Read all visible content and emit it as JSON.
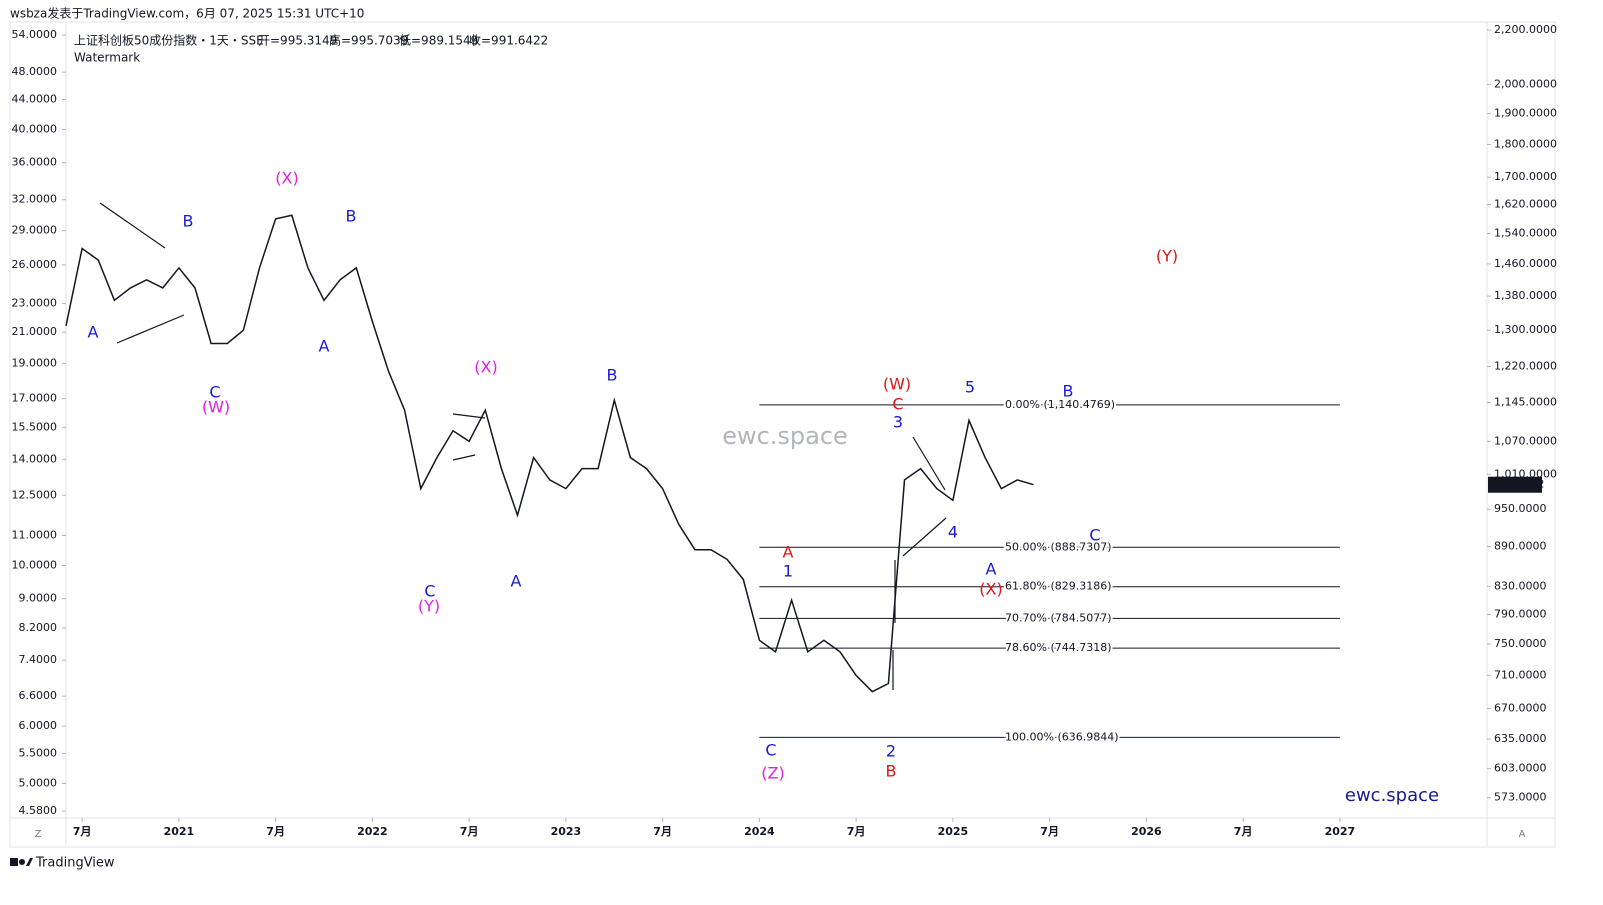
{
  "header": {
    "byline": "wsbza发表于TradingView.com，6月 07, 2025 15:31 UTC+10",
    "footer": "TradingView"
  },
  "chart_data": {
    "type": "line",
    "title": "上证科创板50成份指数・1天・SSE",
    "ohlc": [
      "开=995.3149",
      "高=995.7039",
      "低=989.1549",
      "收=991.6422"
    ],
    "subtitle": "Watermark",
    "watermark": "ewc.space",
    "brand": "ewc.space",
    "scale_buttons": [
      "Z",
      "A"
    ],
    "log_scale": true,
    "x": [
      "2020-06",
      "2020-07",
      "2020-08",
      "2020-09",
      "2020-10",
      "2020-11",
      "2020-12",
      "2021-01",
      "2021-02",
      "2021-03",
      "2021-04",
      "2021-05",
      "2021-06",
      "2021-07",
      "2021-08",
      "2021-09",
      "2021-10",
      "2021-11",
      "2021-12",
      "2022-01",
      "2022-02",
      "2022-03",
      "2022-04",
      "2022-05",
      "2022-06",
      "2022-07",
      "2022-08",
      "2022-09",
      "2022-10",
      "2022-11",
      "2022-12",
      "2023-01",
      "2023-02",
      "2023-03",
      "2023-04",
      "2023-05",
      "2023-06",
      "2023-07",
      "2023-08",
      "2023-09",
      "2023-10",
      "2023-11",
      "2023-12",
      "2024-01",
      "2024-02",
      "2024-03",
      "2024-04",
      "2024-05",
      "2024-06",
      "2024-07",
      "2024-08",
      "2024-09",
      "2024-10",
      "2024-11",
      "2024-12",
      "2025-01",
      "2025-02",
      "2025-03",
      "2025-04",
      "2025-05",
      "2025-06"
    ],
    "series": [
      {
        "color": "#131722",
        "values": [
          1310,
          1500,
          1470,
          1370,
          1400,
          1420,
          1400,
          1450,
          1400,
          1270,
          1270,
          1300,
          1450,
          1580,
          1590,
          1450,
          1370,
          1420,
          1450,
          1320,
          1210,
          1130,
          985,
          1040,
          1090,
          1070,
          1130,
          1020,
          940,
          1040,
          1000,
          985,
          1020,
          1020,
          1150,
          1040,
          1020,
          985,
          925,
          885,
          885,
          870,
          840,
          755,
          740,
          810,
          740,
          755,
          740,
          710,
          690,
          700,
          1000,
          1020,
          985,
          965,
          1110,
          1040,
          985,
          1000,
          991.6422
        ]
      }
    ],
    "xlim": [
      "2020-06",
      "2027-10"
    ],
    "xticks": [
      {
        "value": "2020-07",
        "label": "7月"
      },
      {
        "value": "2021-01",
        "label": "2021"
      },
      {
        "value": "2021-07",
        "label": "7月"
      },
      {
        "value": "2022-01",
        "label": "2022"
      },
      {
        "value": "2022-07",
        "label": "7月"
      },
      {
        "value": "2023-01",
        "label": "2023"
      },
      {
        "value": "2023-07",
        "label": "7月"
      },
      {
        "value": "2024-01",
        "label": "2024"
      },
      {
        "value": "2024-07",
        "label": "7月"
      },
      {
        "value": "2025-01",
        "label": "2025"
      },
      {
        "value": "2025-07",
        "label": "7月"
      },
      {
        "value": "2026-01",
        "label": "2026"
      },
      {
        "value": "2026-07",
        "label": "7月"
      },
      {
        "value": "2027-01",
        "label": "2027"
      }
    ],
    "ylim": [
      553,
      2231
    ],
    "yticks": [
      {
        "value": 2200,
        "label": "2,200.0000"
      },
      {
        "value": 2000,
        "label": "2,000.0000"
      },
      {
        "value": 1900,
        "label": "1,900.0000"
      },
      {
        "value": 1800,
        "label": "1,800.0000"
      },
      {
        "value": 1700,
        "label": "1,700.0000"
      },
      {
        "value": 1620,
        "label": "1,620.0000"
      },
      {
        "value": 1540,
        "label": "1,540.0000"
      },
      {
        "value": 1460,
        "label": "1,460.0000"
      },
      {
        "value": 1380,
        "label": "1,380.0000"
      },
      {
        "value": 1300,
        "label": "1,300.0000"
      },
      {
        "value": 1220,
        "label": "1,220.0000"
      },
      {
        "value": 1145,
        "label": "1,145.0000"
      },
      {
        "value": 1070,
        "label": "1,070.0000"
      },
      {
        "value": 1010,
        "label": "1,010.0000"
      },
      {
        "value": 950,
        "label": "950.0000"
      },
      {
        "value": 890,
        "label": "890.0000"
      },
      {
        "value": 830,
        "label": "830.0000"
      },
      {
        "value": 790,
        "label": "790.0000"
      },
      {
        "value": 750,
        "label": "750.0000"
      },
      {
        "value": 710,
        "label": "710.0000"
      },
      {
        "value": 670,
        "label": "670.0000"
      },
      {
        "value": 635,
        "label": "635.0000"
      },
      {
        "value": 603,
        "label": "603.0000"
      },
      {
        "value": 573,
        "label": "573.0000"
      }
    ],
    "y2lim": [
      4.48,
      56.3
    ],
    "y2ticks": [
      {
        "value": 54,
        "label": "54.0000"
      },
      {
        "value": 48,
        "label": "48.0000"
      },
      {
        "value": 44,
        "label": "44.0000"
      },
      {
        "value": 40,
        "label": "40.0000"
      },
      {
        "value": 36,
        "label": "36.0000"
      },
      {
        "value": 32,
        "label": "32.0000"
      },
      {
        "value": 29,
        "label": "29.0000"
      },
      {
        "value": 26,
        "label": "26.0000"
      },
      {
        "value": 23,
        "label": "23.0000"
      },
      {
        "value": 21,
        "label": "21.0000"
      },
      {
        "value": 19,
        "label": "19.0000"
      },
      {
        "value": 17,
        "label": "17.0000"
      },
      {
        "value": 15.5,
        "label": "15.5000"
      },
      {
        "value": 14,
        "label": "14.0000"
      },
      {
        "value": 12.5,
        "label": "12.5000"
      },
      {
        "value": 11,
        "label": "11.0000"
      },
      {
        "value": 10,
        "label": "10.0000"
      },
      {
        "value": 9,
        "label": "9.0000"
      },
      {
        "value": 8.2,
        "label": "8.2000"
      },
      {
        "value": 7.4,
        "label": "7.4000"
      },
      {
        "value": 6.6,
        "label": "6.6000"
      },
      {
        "value": 6,
        "label": "6.0000"
      },
      {
        "value": 5.5,
        "label": "5.5000"
      },
      {
        "value": 5,
        "label": "5.0000"
      },
      {
        "value": 4.58,
        "label": "4.5800"
      }
    ],
    "fib": {
      "start": "2024-01",
      "end": "2027-01",
      "levels": [
        {
          "value": 1140.4769,
          "label": "0.00% (1,140.4769)"
        },
        {
          "value": 888.7307,
          "label": "50.00% (888.7307)"
        },
        {
          "value": 829.3186,
          "label": "61.80% (829.3186)"
        },
        {
          "value": 784.5077,
          "label": "70.70% (784.5077)"
        },
        {
          "value": 744.7318,
          "label": "78.60% (744.7318)"
        },
        {
          "value": 636.9844,
          "label": "100.00% (636.9844)"
        }
      ]
    },
    "annotations": [
      {
        "text": "A",
        "color": "#1a1ad6"
      },
      {
        "text": "B",
        "color": "#1a1ad6"
      },
      {
        "text": "C",
        "color": "#1a1ad6"
      },
      {
        "text": "(W)",
        "color": "#e020e0"
      },
      {
        "text": "(X)",
        "color": "#e020e0"
      },
      {
        "text": "B",
        "color": "#1a1ad6"
      },
      {
        "text": "A",
        "color": "#1a1ad6"
      },
      {
        "text": "(X)",
        "color": "#e020e0"
      },
      {
        "text": "C",
        "color": "#1a1ad6"
      },
      {
        "text": "(Y)",
        "color": "#e020e0"
      },
      {
        "text": "A",
        "color": "#1a1ad6"
      },
      {
        "text": "B",
        "color": "#1a1ad6"
      },
      {
        "text": "A",
        "color": "#e01414"
      },
      {
        "text": "1",
        "color": "#1a1ad6"
      },
      {
        "text": "C",
        "color": "#1a1ad6"
      },
      {
        "text": "(Z)",
        "color": "#e020e0"
      },
      {
        "text": "2",
        "color": "#1a1ad6"
      },
      {
        "text": "B",
        "color": "#e01414"
      },
      {
        "text": "(W)",
        "color": "#e01414"
      },
      {
        "text": "C",
        "color": "#e01414"
      },
      {
        "text": "3",
        "color": "#1a1ad6"
      },
      {
        "text": "4",
        "color": "#1a1ad6"
      },
      {
        "text": "5",
        "color": "#1a1ad6"
      },
      {
        "text": "A",
        "color": "#1a1ad6"
      },
      {
        "text": "(X)",
        "color": "#e01414"
      },
      {
        "text": "B",
        "color": "#1a1ad6"
      },
      {
        "text": "C",
        "color": "#1a1ad6"
      },
      {
        "text": "(Y)",
        "color": "#e01414"
      }
    ]
  }
}
